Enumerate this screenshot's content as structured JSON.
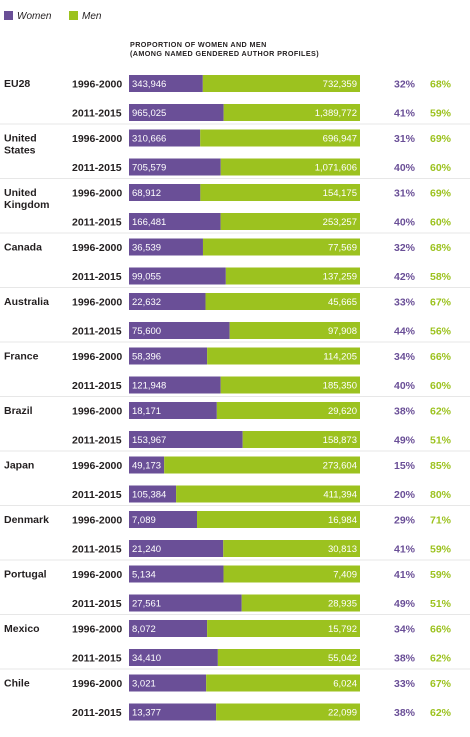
{
  "colors": {
    "women": "#6a4f97",
    "men": "#9cc21f",
    "divider": "#d0d0d0"
  },
  "chart_data": {
    "type": "bar",
    "stacked": true,
    "normalized": true,
    "title": "PROPORTION OF WOMEN AND MEN",
    "subtitle": "(AMONG NAMED GENDERED AUTHOR PROFILES)",
    "legend": {
      "placement": "top-left",
      "entries": [
        "Women",
        "Men"
      ]
    },
    "series": [
      {
        "name": "Women"
      },
      {
        "name": "Men"
      }
    ],
    "groups": [
      {
        "country": "EU28",
        "rows": [
          {
            "period": "1996-2000",
            "women": 343946,
            "men": 732359,
            "women_label": "343,946",
            "men_label": "732,359",
            "women_pct": "32%",
            "men_pct": "68%"
          },
          {
            "period": "2011-2015",
            "women": 965025,
            "men": 1389772,
            "women_label": "965,025",
            "men_label": "1,389,772",
            "women_pct": "41%",
            "men_pct": "59%"
          }
        ]
      },
      {
        "country": "United States",
        "rows": [
          {
            "period": "1996-2000",
            "women": 310666,
            "men": 696947,
            "women_label": "310,666",
            "men_label": "696,947",
            "women_pct": "31%",
            "men_pct": "69%"
          },
          {
            "period": "2011-2015",
            "women": 705579,
            "men": 1071606,
            "women_label": "705,579",
            "men_label": "1,071,606",
            "women_pct": "40%",
            "men_pct": "60%"
          }
        ]
      },
      {
        "country": "United Kingdom",
        "rows": [
          {
            "period": "1996-2000",
            "women": 68912,
            "men": 154175,
            "women_label": "68,912",
            "men_label": "154,175",
            "women_pct": "31%",
            "men_pct": "69%"
          },
          {
            "period": "2011-2015",
            "women": 166481,
            "men": 253257,
            "women_label": "166,481",
            "men_label": "253,257",
            "women_pct": "40%",
            "men_pct": "60%"
          }
        ]
      },
      {
        "country": "Canada",
        "rows": [
          {
            "period": "1996-2000",
            "women": 36539,
            "men": 77569,
            "women_label": "36,539",
            "men_label": "77,569",
            "women_pct": "32%",
            "men_pct": "68%"
          },
          {
            "period": "2011-2015",
            "women": 99055,
            "men": 137259,
            "women_label": "99,055",
            "men_label": "137,259",
            "women_pct": "42%",
            "men_pct": "58%"
          }
        ]
      },
      {
        "country": "Australia",
        "rows": [
          {
            "period": "1996-2000",
            "women": 22632,
            "men": 45665,
            "women_label": "22,632",
            "men_label": "45,665",
            "women_pct": "33%",
            "men_pct": "67%"
          },
          {
            "period": "2011-2015",
            "women": 75600,
            "men": 97908,
            "women_label": "75,600",
            "men_label": "97,908",
            "women_pct": "44%",
            "men_pct": "56%"
          }
        ]
      },
      {
        "country": "France",
        "rows": [
          {
            "period": "1996-2000",
            "women": 58396,
            "men": 114205,
            "women_label": "58,396",
            "men_label": "114,205",
            "women_pct": "34%",
            "men_pct": "66%"
          },
          {
            "period": "2011-2015",
            "women": 121948,
            "men": 185350,
            "women_label": "121,948",
            "men_label": "185,350",
            "women_pct": "40%",
            "men_pct": "60%"
          }
        ]
      },
      {
        "country": "Brazil",
        "rows": [
          {
            "period": "1996-2000",
            "women": 18171,
            "men": 29620,
            "women_label": "18,171",
            "men_label": "29,620",
            "women_pct": "38%",
            "men_pct": "62%"
          },
          {
            "period": "2011-2015",
            "women": 153967,
            "men": 158873,
            "women_label": "153,967",
            "men_label": "158,873",
            "women_pct": "49%",
            "men_pct": "51%"
          }
        ]
      },
      {
        "country": "Japan",
        "rows": [
          {
            "period": "1996-2000",
            "women": 49173,
            "men": 273604,
            "women_label": "49,173",
            "men_label": "273,604",
            "women_pct": "15%",
            "men_pct": "85%"
          },
          {
            "period": "2011-2015",
            "women": 105384,
            "men": 411394,
            "women_label": "105,384",
            "men_label": "411,394",
            "women_pct": "20%",
            "men_pct": "80%"
          }
        ]
      },
      {
        "country": "Denmark",
        "rows": [
          {
            "period": "1996-2000",
            "women": 7089,
            "men": 16984,
            "women_label": "7,089",
            "men_label": "16,984",
            "women_pct": "29%",
            "men_pct": "71%"
          },
          {
            "period": "2011-2015",
            "women": 21240,
            "men": 30813,
            "women_label": "21,240",
            "men_label": "30,813",
            "women_pct": "41%",
            "men_pct": "59%"
          }
        ]
      },
      {
        "country": "Portugal",
        "rows": [
          {
            "period": "1996-2000",
            "women": 5134,
            "men": 7409,
            "women_label": "5,134",
            "men_label": "7,409",
            "women_pct": "41%",
            "men_pct": "59%"
          },
          {
            "period": "2011-2015",
            "women": 27561,
            "men": 28935,
            "women_label": "27,561",
            "men_label": "28,935",
            "women_pct": "49%",
            "men_pct": "51%"
          }
        ]
      },
      {
        "country": "Mexico",
        "rows": [
          {
            "period": "1996-2000",
            "women": 8072,
            "men": 15792,
            "women_label": "8,072",
            "men_label": "15,792",
            "women_pct": "34%",
            "men_pct": "66%"
          },
          {
            "period": "2011-2015",
            "women": 34410,
            "men": 55042,
            "women_label": "34,410",
            "men_label": "55,042",
            "women_pct": "38%",
            "men_pct": "62%"
          }
        ]
      },
      {
        "country": "Chile",
        "rows": [
          {
            "period": "1996-2000",
            "women": 3021,
            "men": 6024,
            "women_label": "3,021",
            "men_label": "6,024",
            "women_pct": "33%",
            "men_pct": "67%"
          },
          {
            "period": "2011-2015",
            "women": 13377,
            "men": 22099,
            "women_label": "13,377",
            "men_label": "22,099",
            "women_pct": "38%",
            "men_pct": "62%"
          }
        ]
      }
    ]
  }
}
